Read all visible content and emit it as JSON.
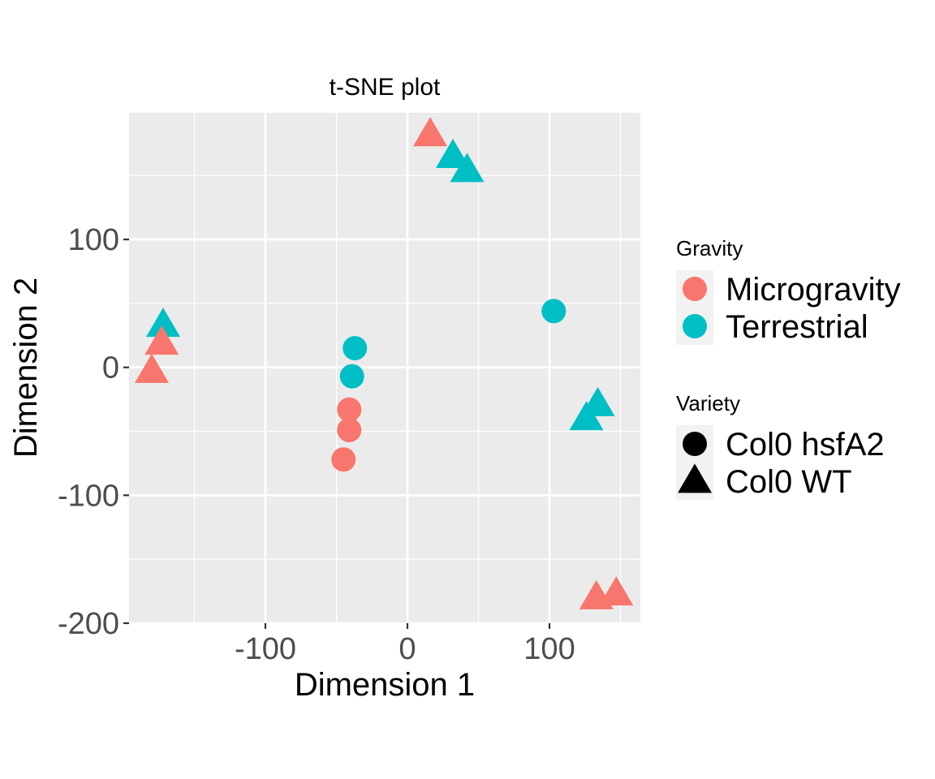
{
  "chart_data": {
    "type": "scatter",
    "title": "t-SNE plot",
    "xlabel": "Dimension 1",
    "ylabel": "Dimension 2",
    "xlim": [
      -196,
      164
    ],
    "ylim": [
      -200,
      199
    ],
    "x_ticks": [
      -100,
      0,
      100
    ],
    "y_ticks": [
      -200,
      -100,
      0,
      100
    ],
    "x_tick_labels": [
      "-100",
      "0",
      "100"
    ],
    "y_tick_labels": [
      "-200",
      "-100",
      "0",
      "100"
    ],
    "grid": true,
    "legend_position": "right",
    "colors": {
      "Microgravity": "#F8766D",
      "Terrestrial": "#00BFC4"
    },
    "legends": [
      {
        "title": "Gravity",
        "kind": "color",
        "entries": [
          "Microgravity",
          "Terrestrial"
        ]
      },
      {
        "title": "Variety",
        "kind": "shape",
        "entries": [
          "Col0 hsfA2",
          "Col0 WT"
        ],
        "shapes": [
          "circle",
          "triangle"
        ]
      }
    ],
    "points": [
      {
        "x": 16,
        "y": 182,
        "gravity": "Microgravity",
        "variety": "Col0 WT"
      },
      {
        "x": 32,
        "y": 165,
        "gravity": "Terrestrial",
        "variety": "Col0 WT"
      },
      {
        "x": 42,
        "y": 154,
        "gravity": "Terrestrial",
        "variety": "Col0 WT"
      },
      {
        "x": -172,
        "y": 33,
        "gravity": "Terrestrial",
        "variety": "Col0 WT"
      },
      {
        "x": -173,
        "y": 19,
        "gravity": "Microgravity",
        "variety": "Col0 WT"
      },
      {
        "x": -180,
        "y": -3,
        "gravity": "Microgravity",
        "variety": "Col0 WT"
      },
      {
        "x": 103,
        "y": 44,
        "gravity": "Terrestrial",
        "variety": "Col0 hsfA2"
      },
      {
        "x": -37,
        "y": 15,
        "gravity": "Terrestrial",
        "variety": "Col0 hsfA2"
      },
      {
        "x": -39,
        "y": -7,
        "gravity": "Terrestrial",
        "variety": "Col0 hsfA2"
      },
      {
        "x": -41,
        "y": -33,
        "gravity": "Microgravity",
        "variety": "Col0 hsfA2"
      },
      {
        "x": -41,
        "y": -49,
        "gravity": "Microgravity",
        "variety": "Col0 hsfA2"
      },
      {
        "x": -45,
        "y": -72,
        "gravity": "Microgravity",
        "variety": "Col0 hsfA2"
      },
      {
        "x": 134,
        "y": -29,
        "gravity": "Terrestrial",
        "variety": "Col0 WT"
      },
      {
        "x": 126,
        "y": -40,
        "gravity": "Terrestrial",
        "variety": "Col0 WT"
      },
      {
        "x": 133,
        "y": -180,
        "gravity": "Microgravity",
        "variety": "Col0 WT"
      },
      {
        "x": 147,
        "y": -177,
        "gravity": "Microgravity",
        "variety": "Col0 WT"
      }
    ]
  }
}
